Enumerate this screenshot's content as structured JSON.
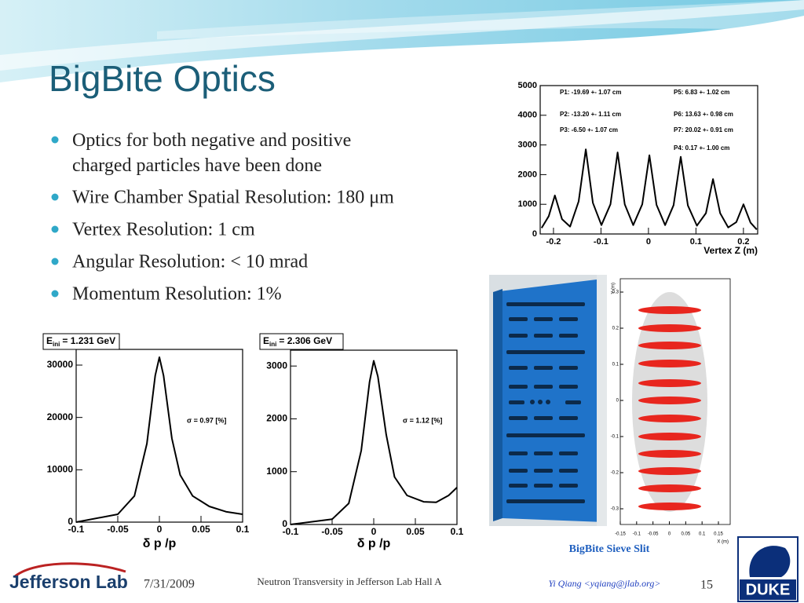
{
  "slide": {
    "title": "BigBite Optics",
    "bullets": [
      "Optics for both negative and positive charged particles have been done",
      "Wire Chamber Spatial Resolution: 180 μm",
      "Vertex Resolution: 1 cm",
      "Angular Resolution: < 10 mrad",
      "Momentum Resolution: 1%"
    ],
    "sieve_caption": "BigBite Sieve Slit"
  },
  "plots": {
    "vertex": {
      "type": "line",
      "x_label": "Vertex Z (m)",
      "x": [
        -0.225,
        -0.21,
        -0.197,
        -0.182,
        -0.165,
        -0.147,
        -0.132,
        -0.117,
        -0.099,
        -0.08,
        -0.065,
        -0.05,
        -0.032,
        -0.013,
        0.002,
        0.017,
        0.035,
        0.053,
        0.068,
        0.083,
        0.102,
        0.121,
        0.136,
        0.151,
        0.168,
        0.185,
        0.2,
        0.215,
        0.228
      ],
      "values": [
        200,
        600,
        1300,
        500,
        250,
        1100,
        2850,
        1050,
        300,
        1000,
        2750,
        1000,
        300,
        1000,
        2650,
        980,
        300,
        970,
        2600,
        960,
        280,
        700,
        1850,
        700,
        220,
        400,
        1000,
        380,
        150
      ],
      "xlim": [
        -0.228,
        0.23
      ],
      "ylim": [
        0,
        5000
      ],
      "xticks": [
        -0.2,
        -0.1,
        0,
        0.1,
        0.2
      ],
      "yticks": [
        0,
        1000,
        2000,
        3000,
        4000,
        5000
      ],
      "annotations": [
        "P1: -19.69 +- 1.07 cm",
        "P2: -13.20 +- 1.11 cm",
        "P3: -6.50 +- 1.07 cm",
        "P5: 6.83 +- 1.02 cm",
        "P6: 13.63 +- 0.98 cm",
        "P7: 20.02 +- 0.91 cm",
        "P4: 0.17 +- 1.00 cm"
      ]
    },
    "momentum": [
      {
        "type": "line",
        "x_label": "δ p /p",
        "energy": {
          "symbol": "E",
          "subscript": "ini",
          "text": "= 1.231 GeV"
        },
        "sigma": "σ = 0.97 [%]",
        "x": [
          -0.1,
          -0.05,
          -0.03,
          -0.015,
          -0.005,
          0,
          0.005,
          0.015,
          0.025,
          0.04,
          0.06,
          0.08,
          0.1
        ],
        "values": [
          0,
          1500,
          5000,
          15000,
          28000,
          31500,
          28000,
          16000,
          9000,
          5000,
          3000,
          2000,
          1500
        ],
        "xlim": [
          -0.1,
          0.1
        ],
        "ylim": [
          0,
          33000
        ],
        "xticks": [
          -0.1,
          -0.05,
          0,
          0.05,
          0.1
        ],
        "yticks": [
          0,
          10000,
          20000,
          30000
        ]
      },
      {
        "type": "line",
        "x_label": "δ p /p",
        "energy": {
          "symbol": "E",
          "subscript": "ini",
          "text": "= 2.306 GeV"
        },
        "sigma": "σ = 1.12 [%]",
        "x": [
          -0.1,
          -0.05,
          -0.03,
          -0.015,
          -0.005,
          0,
          0.005,
          0.015,
          0.025,
          0.04,
          0.06,
          0.075,
          0.09,
          0.1
        ],
        "values": [
          0,
          100,
          400,
          1400,
          2700,
          3100,
          2800,
          1700,
          900,
          550,
          430,
          420,
          550,
          700
        ],
        "xlim": [
          -0.1,
          0.1
        ],
        "ylim": [
          0,
          3300
        ],
        "xticks": [
          -0.1,
          -0.05,
          0,
          0.05,
          0.1
        ],
        "yticks": [
          0,
          1000,
          2000,
          3000
        ]
      }
    ],
    "sieve": {
      "type": "scatter",
      "x_label": "X (m)",
      "y_label": "Y (m)",
      "xlim": [
        -0.15,
        0.15
      ],
      "ylim": [
        -0.3,
        0.3
      ],
      "xticks": [
        -0.15,
        -0.1,
        -0.05,
        0,
        0.05,
        0.1,
        0.15
      ],
      "yticks": [
        -0.3,
        -0.2,
        -0.1,
        0,
        0.1,
        0.2,
        0.3
      ]
    }
  },
  "footer": {
    "logo": "Jefferson Lab",
    "date": "7/31/2009",
    "talk": "Neutron Transversity in Jefferson Lab Hall A",
    "author": "Yi Qiang <yqiang@jlab.org>",
    "page": "15",
    "duke": "DUKE"
  }
}
